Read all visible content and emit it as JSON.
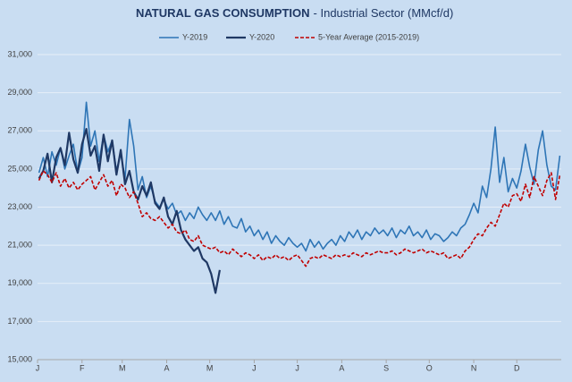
{
  "chart_data": {
    "type": "line",
    "title": "NATURAL GAS CONSUMPTION",
    "subtitle": "- Industrial Sector (MMcf/d)",
    "x": [
      1,
      4,
      7,
      10,
      13,
      16,
      19,
      22,
      25,
      28,
      31,
      34,
      37,
      40,
      43,
      46,
      49,
      52,
      55,
      58,
      61,
      64,
      67,
      70,
      73,
      76,
      79,
      82,
      85,
      88,
      91,
      94,
      97,
      100,
      103,
      106,
      109,
      112,
      115,
      118,
      121,
      124,
      127,
      130,
      133,
      136,
      139,
      142,
      145,
      148,
      151,
      154,
      157,
      160,
      163,
      166,
      169,
      172,
      175,
      178,
      181,
      184,
      187,
      190,
      193,
      196,
      199,
      202,
      205,
      208,
      211,
      214,
      217,
      220,
      223,
      226,
      229,
      232,
      235,
      238,
      241,
      244,
      247,
      250,
      253,
      256,
      259,
      262,
      265,
      268,
      271,
      274,
      277,
      280,
      283,
      286,
      289,
      292,
      295,
      298,
      301,
      304,
      307,
      310,
      313,
      316,
      319,
      322,
      325,
      328,
      331,
      334,
      337,
      340,
      343,
      346,
      349,
      352,
      355,
      358,
      361,
      364
    ],
    "xlim": [
      0,
      365
    ],
    "xticks": [
      {
        "value": 0,
        "label": "J"
      },
      {
        "value": 31,
        "label": "F"
      },
      {
        "value": 59,
        "label": "M"
      },
      {
        "value": 90,
        "label": "A"
      },
      {
        "value": 120,
        "label": "M"
      },
      {
        "value": 151,
        "label": "J"
      },
      {
        "value": 181,
        "label": "J"
      },
      {
        "value": 212,
        "label": "A"
      },
      {
        "value": 243,
        "label": "S"
      },
      {
        "value": 273,
        "label": "O"
      },
      {
        "value": 304,
        "label": "N"
      },
      {
        "value": 334,
        "label": "D"
      }
    ],
    "ylim": [
      15000,
      31000
    ],
    "yticks": [
      {
        "value": 15000,
        "label": "15,000"
      },
      {
        "value": 17000,
        "label": "17,000"
      },
      {
        "value": 19000,
        "label": "19,000"
      },
      {
        "value": 21000,
        "label": "21,000"
      },
      {
        "value": 23000,
        "label": "23,000"
      },
      {
        "value": 25000,
        "label": "25,000"
      },
      {
        "value": 27000,
        "label": "27,000"
      },
      {
        "value": 29000,
        "label": "29,000"
      },
      {
        "value": 31000,
        "label": "31,000"
      }
    ],
    "grid": true,
    "legend": "top",
    "series": [
      {
        "name": "Y-2019",
        "color": "#2e75b6",
        "dash": false,
        "values": [
          24800,
          25600,
          24600,
          25900,
          25200,
          26100,
          25000,
          25700,
          26300,
          24800,
          25600,
          28500,
          26200,
          27000,
          25400,
          26800,
          25900,
          26500,
          24900,
          25800,
          24500,
          27600,
          26200,
          23900,
          24600,
          23500,
          24100,
          23300,
          23000,
          23400,
          22900,
          23200,
          22600,
          22800,
          22300,
          22700,
          22400,
          23000,
          22600,
          22300,
          22700,
          22300,
          22800,
          22100,
          22500,
          22000,
          21900,
          22400,
          21700,
          22000,
          21500,
          21800,
          21300,
          21700,
          21100,
          21500,
          21200,
          21000,
          21400,
          21100,
          20900,
          21100,
          20700,
          21300,
          20900,
          21200,
          20800,
          21100,
          21300,
          21000,
          21500,
          21200,
          21700,
          21400,
          21800,
          21300,
          21700,
          21500,
          21900,
          21600,
          21800,
          21500,
          21900,
          21400,
          21800,
          21600,
          22000,
          21500,
          21700,
          21400,
          21800,
          21300,
          21600,
          21500,
          21200,
          21400,
          21700,
          21500,
          21900,
          22100,
          22600,
          23200,
          22700,
          24100,
          23500,
          25000,
          27200,
          24300,
          25600,
          23800,
          24500,
          24000,
          24900,
          26300,
          25100,
          24200,
          26000,
          27000,
          25200,
          24100,
          23900,
          25700
        ]
      },
      {
        "name": "Y-2020",
        "color": "#1f3864",
        "dash": false,
        "values": [
          24500,
          24900,
          25800,
          24300,
          25600,
          26100,
          25200,
          26900,
          25500,
          24800,
          26300,
          27100,
          25700,
          26200,
          24900,
          26800,
          25400,
          26500,
          24700,
          26000,
          24200,
          24900,
          23800,
          23400,
          24100,
          23600,
          24300,
          23200,
          22900,
          23500,
          22500,
          22100,
          22800,
          21800,
          21300,
          21000,
          20700,
          20900,
          20300,
          20100,
          19500,
          18500,
          19700,
          null,
          null,
          null,
          null,
          null,
          null,
          null,
          null,
          null,
          null,
          null,
          null,
          null,
          null,
          null,
          null,
          null,
          null,
          null,
          null,
          null,
          null,
          null,
          null,
          null,
          null,
          null,
          null,
          null,
          null,
          null,
          null,
          null,
          null,
          null,
          null,
          null,
          null,
          null,
          null,
          null,
          null,
          null,
          null,
          null,
          null,
          null,
          null,
          null,
          null,
          null,
          null,
          null,
          null,
          null,
          null,
          null,
          null,
          null,
          null,
          null,
          null,
          null,
          null,
          null,
          null,
          null,
          null,
          null,
          null,
          null,
          null,
          null,
          null,
          null,
          null,
          null,
          null,
          null
        ]
      },
      {
        "name": "5-Year Average (2015-2019)",
        "color": "#c00000",
        "dash": true,
        "values": [
          24400,
          24900,
          24700,
          24300,
          24800,
          24100,
          24500,
          24000,
          24300,
          23900,
          24200,
          24400,
          24600,
          23900,
          24300,
          24700,
          24100,
          24400,
          23600,
          24200,
          24000,
          23500,
          23800,
          23200,
          22500,
          22700,
          22400,
          22300,
          22500,
          22200,
          21900,
          22100,
          21700,
          21600,
          21800,
          21300,
          21200,
          21500,
          21000,
          20900,
          20800,
          20900,
          20600,
          20700,
          20500,
          20800,
          20600,
          20400,
          20600,
          20500,
          20300,
          20500,
          20200,
          20400,
          20300,
          20500,
          20300,
          20400,
          20200,
          20400,
          20500,
          20200,
          19900,
          20300,
          20400,
          20300,
          20500,
          20400,
          20300,
          20500,
          20400,
          20500,
          20400,
          20600,
          20500,
          20400,
          20600,
          20500,
          20600,
          20700,
          20600,
          20600,
          20700,
          20500,
          20600,
          20800,
          20700,
          20600,
          20700,
          20800,
          20600,
          20700,
          20600,
          20500,
          20600,
          20300,
          20400,
          20500,
          20300,
          20700,
          20900,
          21300,
          21600,
          21500,
          21900,
          22200,
          22000,
          22600,
          23200,
          23000,
          23600,
          23700,
          23300,
          24200,
          23500,
          24600,
          24100,
          23600,
          24400,
          24800,
          23400,
          24700
        ]
      }
    ]
  }
}
